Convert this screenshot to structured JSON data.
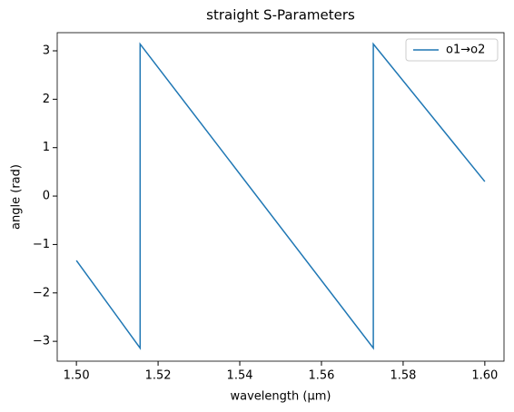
{
  "chart_data": {
    "type": "line",
    "title": "straight S-Parameters",
    "x_label": "wavelength (µm)",
    "y_label": "angle (rad)",
    "x": [
      1.5,
      1.5156,
      1.5156,
      1.5727,
      1.5727,
      1.6
    ],
    "series": [
      {
        "name": "o1→o2",
        "color": "#1f77b4",
        "values": [
          -1.33,
          -3.14,
          3.14,
          -3.14,
          3.14,
          0.3
        ]
      }
    ],
    "xlim": [
      1.4953,
      1.6047
    ],
    "ylim": [
      -3.41,
      3.375
    ],
    "xticks": [
      {
        "value": 1.5,
        "label": "1.50"
      },
      {
        "value": 1.52,
        "label": "1.52"
      },
      {
        "value": 1.54,
        "label": "1.54"
      },
      {
        "value": 1.56,
        "label": "1.56"
      },
      {
        "value": 1.58,
        "label": "1.58"
      },
      {
        "value": 1.6,
        "label": "1.60"
      }
    ],
    "yticks": [
      {
        "value": -3,
        "label": "−3"
      },
      {
        "value": -2,
        "label": "−2"
      },
      {
        "value": -1,
        "label": "−1"
      },
      0,
      1,
      2,
      3
    ],
    "legend": "upper right",
    "grid": false
  }
}
